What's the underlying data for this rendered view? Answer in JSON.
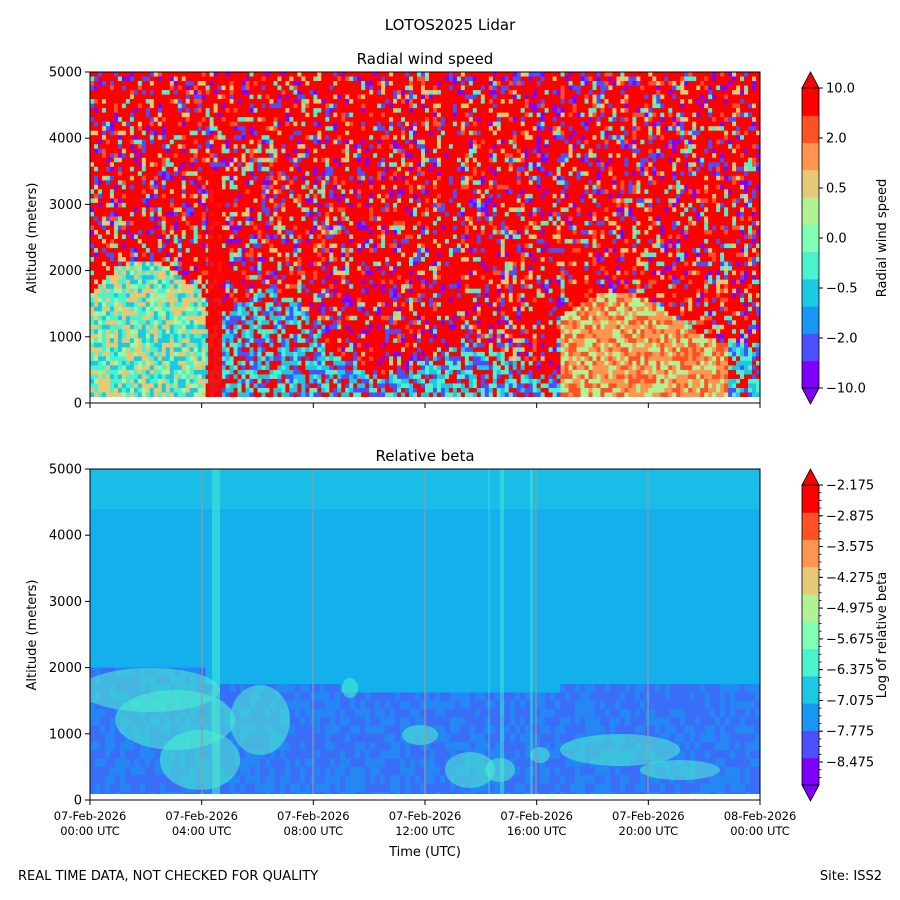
{
  "figure": {
    "suptitle": "LOTOS2025 Lidar",
    "footer_left": "REAL TIME DATA, NOT CHECKED FOR QUALITY",
    "footer_right": "Site: ISS2"
  },
  "chart_data": [
    {
      "type": "heatmap",
      "title": "Radial wind speed",
      "ylabel": "Altitude (meters)",
      "xlabel": "",
      "ylim": [
        0,
        5000
      ],
      "y_ticks": [
        "0",
        "1000",
        "2000",
        "3000",
        "4000",
        "5000"
      ],
      "x_ticks": [],
      "colorbar": {
        "label": "Radial wind speed",
        "levels": [
          -10.0,
          -5.0,
          -2.0,
          -1.0,
          -0.5,
          -0.2,
          0.0,
          0.2,
          0.5,
          1.0,
          2.0,
          5.0,
          10.0
        ],
        "tick_labels": [
          "−10.0",
          "−2.0",
          "−0.5",
          "0.0",
          "0.5",
          "2.0",
          "10.0"
        ],
        "colors": [
          "#8000ff",
          "#4c50fc",
          "#1996f3",
          "#1cc9e3",
          "#4cf2ce",
          "#80ffb4",
          "#b2f296",
          "#e6c974",
          "#ff964f",
          "#ff5026",
          "#ff0000"
        ],
        "extend": "both"
      }
    },
    {
      "type": "heatmap",
      "title": "Relative beta",
      "ylabel": "Altitude (meters)",
      "xlabel": "Time (UTC)",
      "ylim": [
        0,
        5000
      ],
      "y_ticks": [
        "0",
        "1000",
        "2000",
        "3000",
        "4000",
        "5000"
      ],
      "x_ticks": [
        {
          "date": "07-Feb-2026",
          "time": "00:00 UTC"
        },
        {
          "date": "07-Feb-2026",
          "time": "04:00 UTC"
        },
        {
          "date": "07-Feb-2026",
          "time": "08:00 UTC"
        },
        {
          "date": "07-Feb-2026",
          "time": "12:00 UTC"
        },
        {
          "date": "07-Feb-2026",
          "time": "16:00 UTC"
        },
        {
          "date": "07-Feb-2026",
          "time": "20:00 UTC"
        },
        {
          "date": "08-Feb-2026",
          "time": "00:00 UTC"
        }
      ],
      "colorbar": {
        "label": "Log of relative beta",
        "tick_labels": [
          "−2.175",
          "−2.875",
          "−3.575",
          "−4.275",
          "−4.975",
          "−5.675",
          "−6.375",
          "−7.075",
          "−7.775",
          "−8.475"
        ],
        "colors": [
          "#8000ff",
          "#4c50fc",
          "#1996f3",
          "#1cc9e3",
          "#4cf2ce",
          "#80ffb4",
          "#b2f296",
          "#e6c974",
          "#ff964f",
          "#ff5026",
          "#ff0000"
        ],
        "extend": "both"
      }
    }
  ]
}
